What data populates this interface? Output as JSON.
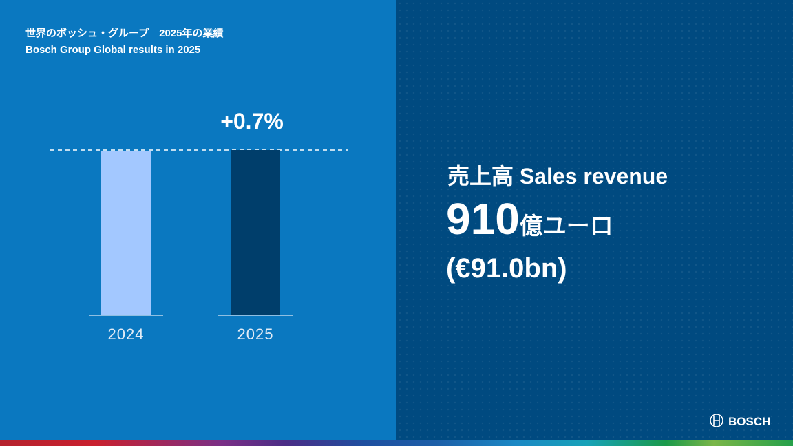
{
  "chart_data": {
    "type": "bar",
    "title": "世界のボッシュ・グループ　2025年の業績",
    "subtitle": "Bosch Group Global results in 2025",
    "categories": [
      "2024",
      "2025"
    ],
    "values": [
      90.4,
      91.0
    ],
    "colors": [
      "#a3c8ff",
      "#003e6b"
    ],
    "annotation": "+0.7%"
  },
  "panel": {
    "headline": "売上高 Sales revenue",
    "value_main": "910",
    "value_unit": "億ユーロ",
    "value_alt": "(€91.0bn)"
  },
  "brand": "BOSCH"
}
